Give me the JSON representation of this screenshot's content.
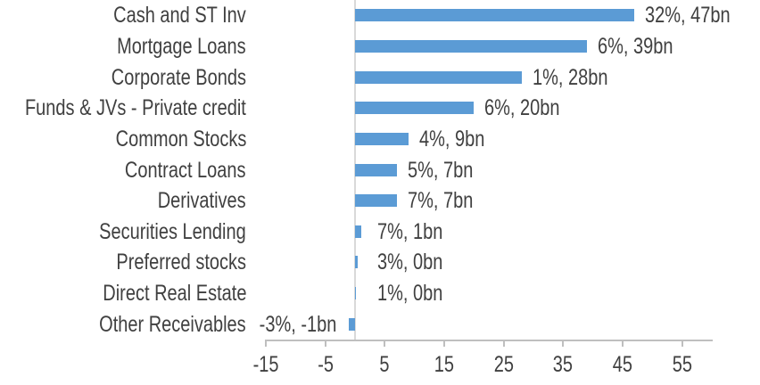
{
  "chart_data": {
    "type": "bar",
    "orientation": "horizontal",
    "title": "",
    "categories": [
      "Cash and ST Inv",
      "Mortgage Loans",
      "Corporate Bonds",
      "Funds & JVs - Private credit",
      "Common Stocks",
      "Contract Loans",
      "Derivatives",
      "Securities Lending",
      "Preferred stocks",
      "Direct Real Estate",
      "Other Receivables"
    ],
    "series": [
      {
        "name": "percent",
        "values": [
          32,
          6,
          1,
          6,
          4,
          5,
          7,
          7,
          3,
          1,
          -3
        ]
      },
      {
        "name": "bn",
        "values": [
          47,
          39,
          28,
          20,
          9,
          7,
          7,
          1,
          0.4,
          0.15,
          -1
        ]
      }
    ],
    "data_labels": [
      "32%, 47bn",
      "6%, 39bn",
      "1%, 28bn",
      "6%, 20bn",
      "4%, 9bn",
      "5%, 7bn",
      "7%, 7bn",
      "7%, 1bn",
      "3%, 0bn",
      "1%, 0bn",
      "-3%, -1bn"
    ],
    "x_axis": {
      "min": -15,
      "max": 60,
      "tick_interval": 10,
      "ticks": [
        -15,
        -5,
        5,
        15,
        25,
        35,
        45,
        55
      ]
    },
    "grid": "off",
    "legend": "none",
    "colors": {
      "bar": "#5B9BD5",
      "text": "#404040",
      "axis_line": "#BFBFBF",
      "zero_line": "#D9D9D9",
      "background": "#FFFFFF"
    }
  }
}
